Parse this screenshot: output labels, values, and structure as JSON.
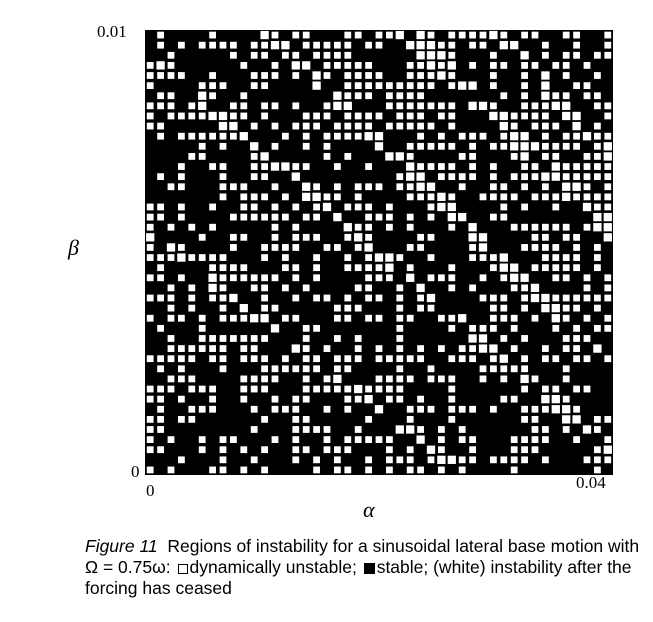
{
  "figure": {
    "number_label": "Figure 11",
    "caption_parts": {
      "lead": "Regions of instability for a sinusoidal lateral base motion with",
      "omega_expr": "Ω = 0.75ω:",
      "unstable_text": "dynamically unstable;",
      "stable_text": "stable; (white) instability after the forcing has ceased"
    }
  },
  "chart_data": {
    "type": "heatmap",
    "title": "",
    "xlabel": "α",
    "ylabel": "β",
    "xlim": [
      0,
      0.04
    ],
    "ylim": [
      0,
      0.01
    ],
    "x_tick_labels": [
      "0",
      "0.04"
    ],
    "y_tick_labels": [
      "0",
      "0.01"
    ],
    "grid_cols": 45,
    "grid_rows": 44,
    "cell_categories": {
      "open": "dynamically unstable",
      "solid": "stable",
      "white": "instability after the forcing has ceased"
    },
    "pattern_note": "Mixed pattern of open and solid squares with diagonal white bands of post-forcing instability, concentrated toward upper-right."
  }
}
